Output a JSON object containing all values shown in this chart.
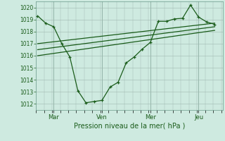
{
  "background_color": "#ceeae0",
  "grid_color": "#a0b8b0",
  "line_color": "#1a5c1a",
  "title": "Pression niveau de la mer( hPa )",
  "yticks": [
    1012,
    1013,
    1014,
    1015,
    1016,
    1017,
    1018,
    1019,
    1020
  ],
  "ylim": [
    1011.5,
    1020.5
  ],
  "day_labels": [
    "Mar",
    "Ven",
    "Mer",
    "Jeu"
  ],
  "day_positions": [
    1,
    4,
    7,
    10
  ],
  "day_vlines": [
    1,
    4,
    7,
    10
  ],
  "xlim": [
    -0.1,
    11.5
  ],
  "line1_x": [
    0,
    0.5,
    1.0,
    1.5,
    2.0,
    2.5,
    3.0,
    3.5,
    4.0,
    4.5,
    5.0,
    5.5,
    6.0,
    6.5,
    7.0,
    7.5,
    8.0,
    8.5,
    9.0,
    9.5,
    10.0,
    10.5,
    11.0
  ],
  "line1_y": [
    1019.3,
    1018.7,
    1018.4,
    1017.0,
    1015.9,
    1013.1,
    1012.1,
    1012.2,
    1012.3,
    1013.4,
    1013.8,
    1015.4,
    1015.9,
    1016.55,
    1017.1,
    1018.85,
    1018.85,
    1019.05,
    1019.1,
    1020.2,
    1019.2,
    1018.8,
    1018.6
  ],
  "line2_x": [
    0,
    11.0
  ],
  "line2_y": [
    1017.0,
    1018.7
  ],
  "line3_x": [
    0,
    11.0
  ],
  "line3_y": [
    1016.5,
    1018.4
  ],
  "line4_x": [
    0,
    11.0
  ],
  "line4_y": [
    1016.0,
    1018.1
  ]
}
